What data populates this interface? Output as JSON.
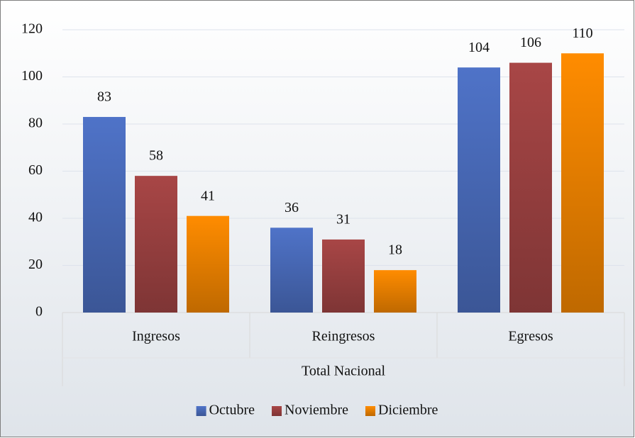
{
  "chart_data": {
    "type": "bar",
    "categories": [
      "Ingresos",
      "Reingresos",
      "Egresos"
    ],
    "category_group": "Total Nacional",
    "series": [
      {
        "name": "Octubre",
        "color": "#4f73c8",
        "values": [
          83,
          36,
          104
        ]
      },
      {
        "name": "Noviembre",
        "color": "#a84646",
        "values": [
          58,
          31,
          106
        ]
      },
      {
        "name": "Diciembre",
        "color": "#ff8c00",
        "values": [
          41,
          18,
          110
        ]
      }
    ],
    "ylim": [
      0,
      120
    ],
    "yticks": [
      0,
      20,
      40,
      60,
      80,
      100,
      120
    ],
    "grid": true,
    "legend": "bottom"
  }
}
